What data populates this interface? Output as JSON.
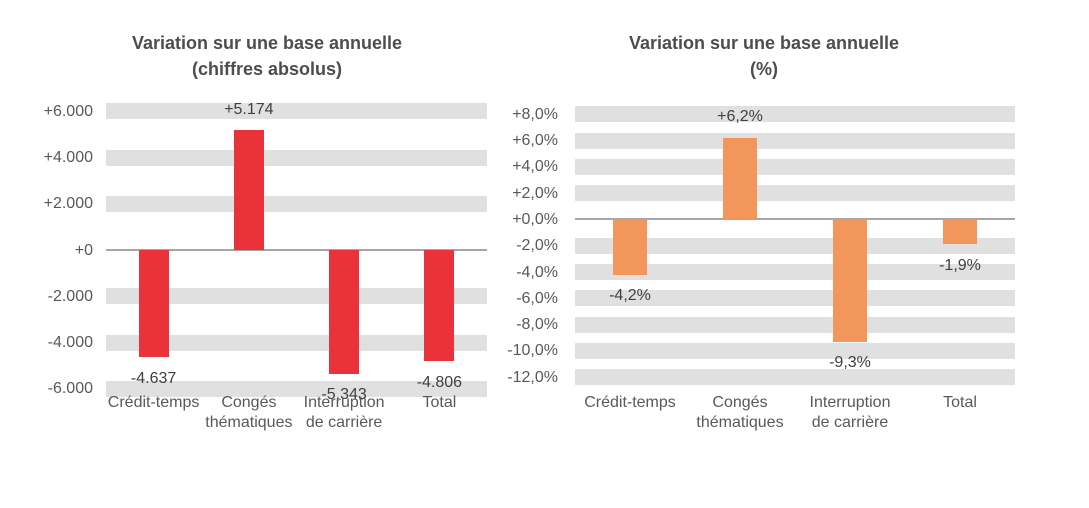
{
  "colors": {
    "background": "#FFFFFF",
    "gridline_band": "#E0E0E0",
    "axis_line": "#A6A6A6",
    "tick_text": "#595959",
    "category_text": "#595959",
    "data_label_text": "#3F3F3F",
    "title_text": "#4D4D4D",
    "red_bar": "#E93239",
    "orange_bar": "#F2965C"
  },
  "chart_data": [
    {
      "type": "bar",
      "title_lines": [
        "Variation sur une base annuelle",
        "(chiffres absolus)"
      ],
      "categories": [
        [
          "Crédit-temps"
        ],
        [
          "Congés",
          "thématiques"
        ],
        [
          "Interruption",
          "de carrière"
        ],
        [
          "Total"
        ]
      ],
      "values": [
        -4637,
        5174,
        -5343,
        -4806
      ],
      "data_labels": [
        "-4.637",
        "+5.174",
        "-5.343",
        "-4.806"
      ],
      "bar_color": "#E93239",
      "ylim": [
        -6000,
        6000
      ],
      "grid": "horizontal-bands",
      "legend": "none",
      "yticks": [
        {
          "value": 6000,
          "label": "+6.000",
          "band": true
        },
        {
          "value": 4000,
          "label": "+4.000",
          "band": true
        },
        {
          "value": 2000,
          "label": "+2.000",
          "band": true
        },
        {
          "value": 0,
          "label": "+0",
          "band": false
        },
        {
          "value": -2000,
          "label": "-2.000",
          "band": true
        },
        {
          "value": -4000,
          "label": "-4.000",
          "band": true
        },
        {
          "value": -6000,
          "label": "-6.000",
          "band": true
        }
      ]
    },
    {
      "type": "bar",
      "title_lines": [
        "Variation sur une base annuelle",
        "(%)"
      ],
      "categories": [
        [
          "Crédit-temps"
        ],
        [
          "Congés",
          "thématiques"
        ],
        [
          "Interruption",
          "de carrière"
        ],
        [
          "Total"
        ]
      ],
      "values": [
        -4.2,
        6.2,
        -9.3,
        -1.9
      ],
      "data_labels": [
        "-4,2%",
        "+6,2%",
        "-9,3%",
        "-1,9%"
      ],
      "bar_color": "#F2965C",
      "ylim": [
        -12,
        8
      ],
      "grid": "horizontal-bands",
      "legend": "none",
      "yticks": [
        {
          "value": 8,
          "label": "+8,0%",
          "band": true
        },
        {
          "value": 6,
          "label": "+6,0%",
          "band": true
        },
        {
          "value": 4,
          "label": "+4,0%",
          "band": true
        },
        {
          "value": 2,
          "label": "+2,0%",
          "band": true
        },
        {
          "value": 0,
          "label": "+0,0%",
          "band": false
        },
        {
          "value": -2,
          "label": "-2,0%",
          "band": true
        },
        {
          "value": -4,
          "label": "-4,0%",
          "band": true
        },
        {
          "value": -6,
          "label": "-6,0%",
          "band": true
        },
        {
          "value": -8,
          "label": "-8,0%",
          "band": true
        },
        {
          "value": -10,
          "label": "-10,0%",
          "band": true
        },
        {
          "value": -12,
          "label": "-12,0%",
          "band": true
        }
      ]
    }
  ]
}
